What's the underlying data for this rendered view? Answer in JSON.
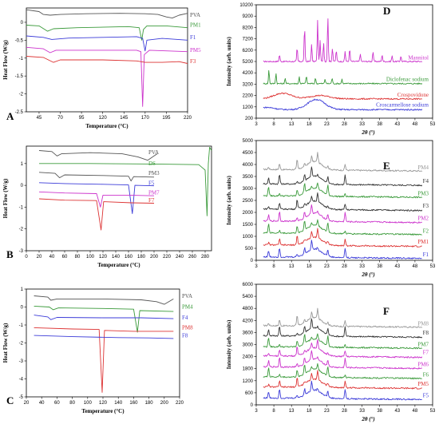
{
  "chart_data": [
    {
      "type": "line",
      "panel_label": "A",
      "xlabel": "Temperature (°C)",
      "ylabel": "Heat Flow (W/g)",
      "xlim": [
        30,
        220
      ],
      "ylim": [
        -2.5,
        0.4
      ],
      "xticks": [
        45,
        70,
        95,
        120,
        145,
        170,
        195,
        220
      ],
      "yticks": [
        0,
        -0.5,
        -1,
        -1.5,
        -2,
        -2.5
      ],
      "series": [
        {
          "name": "PVA",
          "color": "#555555",
          "label_y": 0.2,
          "points": [
            [
              30,
              0.35
            ],
            [
              45,
              0.3
            ],
            [
              50,
              0.22
            ],
            [
              58,
              0.2
            ],
            [
              70,
              0.22
            ],
            [
              100,
              0.24
            ],
            [
              140,
              0.25
            ],
            [
              170,
              0.24
            ],
            [
              185,
              0.22
            ],
            [
              195,
              0.15
            ],
            [
              202,
              0.12
            ],
            [
              210,
              0.2
            ],
            [
              220,
              0.25
            ]
          ]
        },
        {
          "name": "PM1",
          "color": "#3a9a3a",
          "label_y": -0.08,
          "points": [
            [
              30,
              -0.08
            ],
            [
              45,
              -0.1
            ],
            [
              55,
              -0.25
            ],
            [
              62,
              -0.18
            ],
            [
              90,
              -0.15
            ],
            [
              150,
              -0.12
            ],
            [
              163,
              -0.15
            ],
            [
              166,
              -0.5
            ],
            [
              168,
              -0.2
            ],
            [
              172,
              -0.1
            ],
            [
              195,
              -0.1
            ],
            [
              220,
              -0.15
            ]
          ]
        },
        {
          "name": "F1",
          "color": "#3b3bd8",
          "label_y": -0.42,
          "points": [
            [
              30,
              -0.38
            ],
            [
              50,
              -0.42
            ],
            [
              60,
              -0.48
            ],
            [
              80,
              -0.44
            ],
            [
              120,
              -0.42
            ],
            [
              160,
              -0.4
            ],
            [
              167,
              -0.45
            ],
            [
              170,
              -0.8
            ],
            [
              172,
              -0.5
            ],
            [
              190,
              -0.45
            ],
            [
              220,
              -0.5
            ]
          ]
        },
        {
          "name": "PM5",
          "color": "#cc33cc",
          "label_y": -0.78,
          "points": [
            [
              30,
              -0.7
            ],
            [
              50,
              -0.74
            ],
            [
              58,
              -0.85
            ],
            [
              65,
              -0.78
            ],
            [
              100,
              -0.78
            ],
            [
              160,
              -0.78
            ],
            [
              165,
              -0.82
            ],
            [
              167,
              -2.35
            ],
            [
              169,
              -0.9
            ],
            [
              175,
              -0.78
            ],
            [
              220,
              -0.82
            ]
          ]
        },
        {
          "name": "F3",
          "color": "#dd3333",
          "label_y": -1.1,
          "points": [
            [
              30,
              -0.95
            ],
            [
              50,
              -0.98
            ],
            [
              62,
              -1.12
            ],
            [
              70,
              -1.05
            ],
            [
              120,
              -1.05
            ],
            [
              160,
              -1.08
            ],
            [
              170,
              -1.12
            ],
            [
              190,
              -1.12
            ],
            [
              210,
              -1.1
            ],
            [
              220,
              -1.15
            ]
          ]
        }
      ]
    },
    {
      "type": "line",
      "panel_label": "B",
      "xlabel": "Temperature (°C)",
      "ylabel": "Heat Flow (W/g)",
      "xlim": [
        0,
        290
      ],
      "ylim": [
        -3,
        1.8
      ],
      "xticks": [
        0,
        20,
        40,
        60,
        80,
        100,
        120,
        140,
        160,
        180,
        200,
        220,
        240,
        260,
        280
      ],
      "yticks": [
        1,
        0,
        -1,
        -2,
        -3
      ],
      "series": [
        {
          "name": "PVA",
          "color": "#555555",
          "label_y": 1.5,
          "points": [
            [
              20,
              1.6
            ],
            [
              40,
              1.55
            ],
            [
              48,
              1.35
            ],
            [
              55,
              1.45
            ],
            [
              100,
              1.5
            ],
            [
              150,
              1.45
            ],
            [
              175,
              1.3
            ],
            [
              190,
              1.15
            ],
            [
              200,
              1.35
            ],
            [
              205,
              1.45
            ]
          ]
        },
        {
          "name": "DS",
          "color": "#3a9a3a",
          "label_y": 1.0,
          "points": [
            [
              20,
              1.0
            ],
            [
              100,
              1.0
            ],
            [
              200,
              0.98
            ],
            [
              270,
              0.95
            ],
            [
              280,
              0.7
            ],
            [
              283,
              -1.4
            ],
            [
              285,
              1.0
            ],
            [
              287,
              1.75
            ],
            [
              290,
              1.6
            ]
          ]
        },
        {
          "name": "PM3",
          "color": "#555555",
          "label_y": 0.55,
          "points": [
            [
              20,
              0.6
            ],
            [
              45,
              0.55
            ],
            [
              52,
              0.35
            ],
            [
              60,
              0.48
            ],
            [
              120,
              0.45
            ],
            [
              160,
              0.42
            ],
            [
              164,
              0.2
            ],
            [
              168,
              0.4
            ],
            [
              200,
              0.38
            ]
          ]
        },
        {
          "name": "F5",
          "color": "#3b3bd8",
          "label_y": 0.1,
          "points": [
            [
              20,
              0.12
            ],
            [
              60,
              0.08
            ],
            [
              120,
              0.05
            ],
            [
              160,
              0.02
            ],
            [
              166,
              -1.3
            ],
            [
              170,
              0.0
            ],
            [
              200,
              -0.02
            ]
          ]
        },
        {
          "name": "PM7",
          "color": "#cc33cc",
          "label_y": -0.35,
          "points": [
            [
              20,
              -0.3
            ],
            [
              60,
              -0.35
            ],
            [
              110,
              -0.38
            ],
            [
              116,
              -1.0
            ],
            [
              120,
              -0.45
            ],
            [
              160,
              -0.45
            ],
            [
              200,
              -0.48
            ]
          ]
        },
        {
          "name": "F7",
          "color": "#dd3333",
          "label_y": -0.7,
          "points": [
            [
              20,
              -0.62
            ],
            [
              60,
              -0.68
            ],
            [
              110,
              -0.7
            ],
            [
              117,
              -2.05
            ],
            [
              121,
              -0.75
            ],
            [
              165,
              -0.8
            ],
            [
              200,
              -0.82
            ]
          ]
        }
      ]
    },
    {
      "type": "line",
      "panel_label": "C",
      "xlabel": "Temperature (°C)",
      "ylabel": "Heat Flow (W/g)",
      "xlim": [
        20,
        220
      ],
      "ylim": [
        -5,
        1
      ],
      "xticks": [
        20,
        40,
        60,
        80,
        100,
        120,
        140,
        160,
        180,
        200,
        220
      ],
      "yticks": [
        1,
        0,
        -1,
        -2,
        -3,
        -4,
        -5
      ],
      "series": [
        {
          "name": "PVA",
          "color": "#555555",
          "label_y": 0.6,
          "points": [
            [
              30,
              0.62
            ],
            [
              48,
              0.55
            ],
            [
              52,
              0.38
            ],
            [
              60,
              0.45
            ],
            [
              120,
              0.45
            ],
            [
              170,
              0.4
            ],
            [
              190,
              0.3
            ],
            [
              200,
              0.15
            ],
            [
              208,
              0.35
            ],
            [
              212,
              0.45
            ]
          ]
        },
        {
          "name": "PM4",
          "color": "#3a9a3a",
          "label_y": 0.0,
          "points": [
            [
              30,
              0.05
            ],
            [
              50,
              0.0
            ],
            [
              55,
              -0.15
            ],
            [
              62,
              -0.05
            ],
            [
              120,
              -0.08
            ],
            [
              160,
              -0.12
            ],
            [
              165,
              -1.4
            ],
            [
              168,
              -0.2
            ],
            [
              212,
              -0.25
            ]
          ]
        },
        {
          "name": "F4",
          "color": "#3b3bd8",
          "label_y": -0.6,
          "points": [
            [
              30,
              -0.45
            ],
            [
              48,
              -0.55
            ],
            [
              52,
              -0.7
            ],
            [
              60,
              -0.58
            ],
            [
              120,
              -0.6
            ],
            [
              170,
              -0.6
            ],
            [
              212,
              -0.65
            ]
          ]
        },
        {
          "name": "PM8",
          "color": "#dd3333",
          "label_y": -1.15,
          "points": [
            [
              30,
              -1.15
            ],
            [
              80,
              -1.22
            ],
            [
              115,
              -1.25
            ],
            [
              119,
              -4.75
            ],
            [
              122,
              -1.3
            ],
            [
              160,
              -1.35
            ],
            [
              212,
              -1.35
            ]
          ]
        },
        {
          "name": "F8",
          "color": "#3b3bd8",
          "label_y": -1.6,
          "points": [
            [
              30,
              -1.58
            ],
            [
              80,
              -1.65
            ],
            [
              140,
              -1.7
            ],
            [
              180,
              -1.72
            ],
            [
              212,
              -1.75
            ]
          ]
        }
      ]
    },
    {
      "type": "line",
      "panel_label": "D",
      "xlabel": "2θ (°)",
      "ylabel": "Intensity (arb. units)",
      "xlim": [
        3,
        53
      ],
      "ylim": [
        200,
        10200
      ],
      "xticks": [
        3,
        8,
        13,
        18,
        23,
        28,
        33,
        38,
        43,
        48,
        53
      ],
      "yticks": [
        200,
        1200,
        2200,
        3200,
        4200,
        5200,
        6200,
        7200,
        8200,
        9200,
        10200
      ],
      "series": [
        {
          "name": "Mannitol",
          "color": "#cc33cc",
          "baseline": 5200,
          "peaks": [
            [
              9.6,
              600
            ],
            [
              14.6,
              1200
            ],
            [
              16.7,
              3000
            ],
            [
              18.7,
              1500
            ],
            [
              20.4,
              3600
            ],
            [
              21.1,
              1800
            ],
            [
              22.1,
              1700
            ],
            [
              23.3,
              4000
            ],
            [
              24.6,
              1200
            ],
            [
              25.7,
              1000
            ],
            [
              28.2,
              900
            ],
            [
              29.5,
              1100
            ],
            [
              32.5,
              700
            ],
            [
              36.1,
              900
            ],
            [
              38.7,
              600
            ],
            [
              41.5,
              500
            ],
            [
              44.0,
              500
            ]
          ]
        },
        {
          "name": "Diclofenac sodium",
          "color": "#3a9a3a",
          "baseline": 3250,
          "peaks": [
            [
              6.6,
              1200
            ],
            [
              8.6,
              900
            ],
            [
              11.2,
              500
            ],
            [
              15.2,
              600
            ],
            [
              17.2,
              700
            ],
            [
              19.8,
              500
            ],
            [
              22.5,
              400
            ],
            [
              24.5,
              500
            ],
            [
              27.3,
              400
            ]
          ]
        },
        {
          "name": "Crospovidone",
          "color": "#dd3333",
          "baseline": 1900,
          "humps": [
            [
              10.5,
              500,
              3.5
            ],
            [
              21,
              300,
              4
            ]
          ]
        },
        {
          "name": "Croscarmellose sodium",
          "color": "#3b3bd8",
          "baseline": 950,
          "humps": [
            [
              6,
              200,
              3
            ],
            [
              20,
              900,
              3.5
            ]
          ]
        }
      ]
    },
    {
      "type": "line",
      "panel_label": "E",
      "xlabel": "2θ (°)",
      "ylabel": "Intensity (arb. units)",
      "xlim": [
        3,
        53
      ],
      "ylim": [
        0,
        5000
      ],
      "xticks": [
        3,
        8,
        13,
        18,
        23,
        28,
        33,
        38,
        43,
        48,
        53
      ],
      "yticks": [
        0,
        500,
        1000,
        1500,
        2000,
        2500,
        3000,
        3500,
        4000,
        4500,
        5000
      ],
      "series": [
        {
          "name": "PM4",
          "color": "#999999",
          "baseline": 3800
        },
        {
          "name": "F4",
          "color": "#333333",
          "baseline": 3200
        },
        {
          "name": "PM3",
          "color": "#3a9a3a",
          "baseline": 2700
        },
        {
          "name": "F3",
          "color": "#333333",
          "baseline": 2150
        },
        {
          "name": "PM2",
          "color": "#cc33cc",
          "baseline": 1650
        },
        {
          "name": "F2",
          "color": "#3a9a3a",
          "baseline": 1150
        },
        {
          "name": "PM1",
          "color": "#dd3333",
          "baseline": 650
        },
        {
          "name": "F1",
          "color": "#3b3bd8",
          "baseline": 150
        }
      ]
    },
    {
      "type": "line",
      "panel_label": "F",
      "xlabel": "2θ (°)",
      "ylabel": "Intensity (arb. units)",
      "xlim": [
        3,
        53
      ],
      "ylim": [
        0,
        6000
      ],
      "xticks": [
        3,
        8,
        13,
        18,
        23,
        28,
        33,
        38,
        43,
        48,
        53
      ],
      "yticks": [
        0,
        600,
        1200,
        1800,
        2400,
        3000,
        3600,
        4200,
        4800,
        5400,
        6000
      ],
      "series": [
        {
          "name": "PM8",
          "color": "#999999",
          "baseline": 3950
        },
        {
          "name": "F8",
          "color": "#333333",
          "baseline": 3450
        },
        {
          "name": "PM7",
          "color": "#3a9a3a",
          "baseline": 2900
        },
        {
          "name": "F7",
          "color": "#cc33cc",
          "baseline": 2450
        },
        {
          "name": "PM6",
          "color": "#cc33cc",
          "baseline": 1900
        },
        {
          "name": "F6",
          "color": "#3a9a3a",
          "baseline": 1400
        },
        {
          "name": "PM5",
          "color": "#dd3333",
          "baseline": 900
        },
        {
          "name": "F5",
          "color": "#3b3bd8",
          "baseline": 350
        }
      ]
    }
  ]
}
